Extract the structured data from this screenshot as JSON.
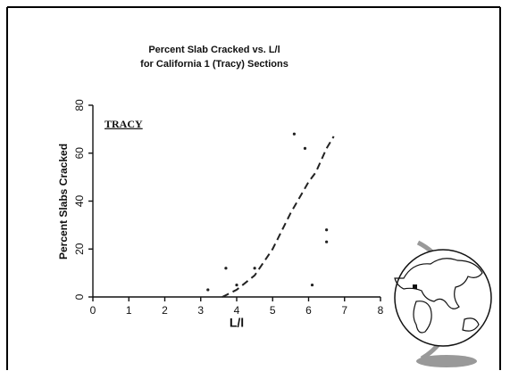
{
  "chart_data": {
    "type": "scatter",
    "title": "Percent Slab Cracked vs. L/l",
    "subtitle": "for California 1 (Tracy) Sections",
    "x_label": "L/l",
    "y_label": "Percent Slabs Cracked",
    "annotation": "TRACY",
    "xlim": [
      0,
      8
    ],
    "ylim": [
      0,
      80
    ],
    "xticks": [
      0,
      1,
      2,
      3,
      4,
      5,
      6,
      7,
      8
    ],
    "yticks": [
      0,
      20,
      40,
      60,
      80
    ],
    "color": "#222222",
    "points": {
      "x": [
        3.2,
        3.7,
        4.0,
        4.5,
        5.6,
        5.9,
        6.1,
        6.5,
        6.5
      ],
      "y": [
        3,
        12,
        5,
        12,
        68,
        62,
        5,
        28,
        23
      ]
    },
    "curve": {
      "x": [
        3.6,
        4.0,
        4.5,
        5.0,
        5.5,
        6.0,
        6.2,
        6.5,
        6.7
      ],
      "y": [
        0,
        3,
        9,
        20,
        35,
        48,
        52,
        62,
        67
      ],
      "dashed": true
    }
  }
}
